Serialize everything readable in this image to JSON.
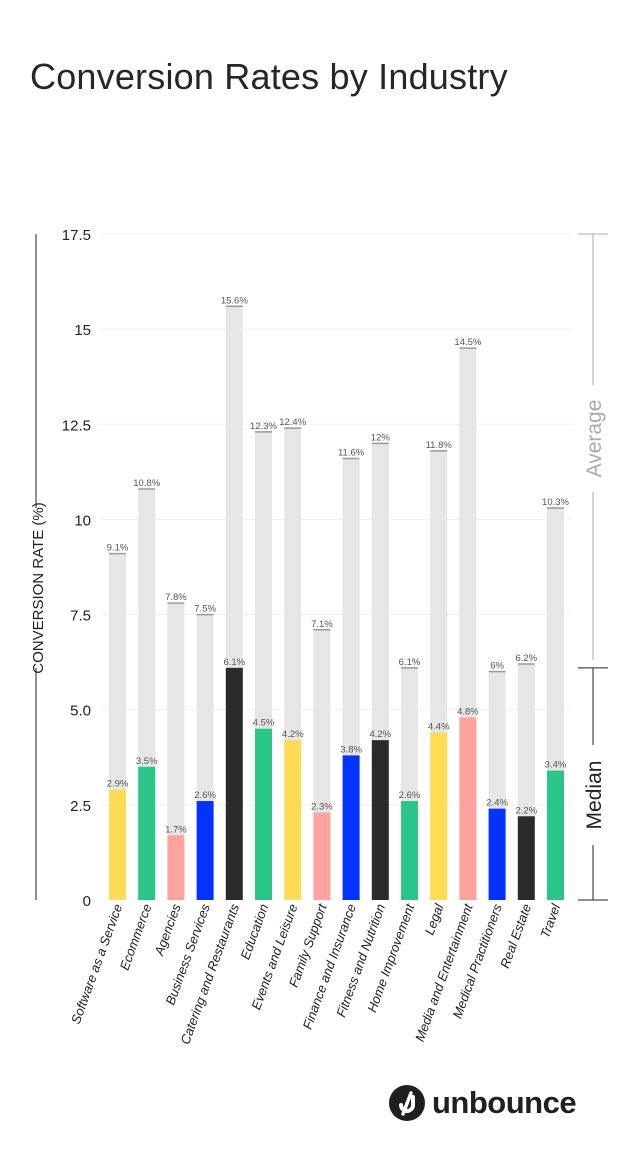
{
  "page": {
    "title": "Conversion Rates by Industry"
  },
  "brand": {
    "name": "unbounce"
  },
  "colors": {
    "yellow": "#fedc55",
    "green": "#2ac688",
    "pink": "#fea39f",
    "blue": "#0433ff",
    "black": "#2b2b2b",
    "average_bar": "#e6e6e6",
    "axis": "#222222",
    "bracket": "#aaaaaa"
  },
  "chart_data": {
    "type": "bar",
    "title": "Conversion Rates by Industry",
    "xlabel": "",
    "ylabel": "CONVERSION RATE (%)",
    "ylim": [
      0,
      17.5
    ],
    "yticks": [
      "0",
      "2.5",
      "5.0",
      "7.5",
      "10",
      "12.5",
      "15",
      "17.5"
    ],
    "grid": true,
    "categories": [
      "Software as a Service",
      "Ecommerce",
      "Agencies",
      "Business Services",
      "Catering and Restaurants",
      "Education",
      "Events and Leisure",
      "Family Support",
      "Finance and Insurance",
      "Fitness and Nutrition",
      "Home Improvement",
      "Legal",
      "Media and Entertainment",
      "Medical Practitioners",
      "Real Estate",
      "Travel"
    ],
    "series": [
      {
        "name": "Median",
        "values": [
          2.9,
          3.5,
          1.7,
          2.6,
          6.1,
          4.5,
          4.2,
          2.3,
          3.8,
          4.2,
          2.6,
          4.4,
          4.8,
          2.4,
          2.2,
          3.4
        ],
        "labels": [
          "2.9%",
          "3.5%",
          "1.7%",
          "2.6%",
          "6.1%",
          "4.5%",
          "4.2%",
          "2.3%",
          "3.8%",
          "4.2%",
          "2.6%",
          "4.4%",
          "4.8%",
          "2.4%",
          "2.2%",
          "3.4%"
        ],
        "colors": [
          "yellow",
          "green",
          "pink",
          "blue",
          "black",
          "green",
          "yellow",
          "pink",
          "blue",
          "black",
          "green",
          "yellow",
          "pink",
          "blue",
          "black",
          "green"
        ]
      },
      {
        "name": "Average",
        "values": [
          9.1,
          10.8,
          7.8,
          7.5,
          15.6,
          12.3,
          12.4,
          7.1,
          11.6,
          12,
          6.1,
          11.8,
          14.5,
          6,
          6.2,
          10.3
        ],
        "labels": [
          "9.1%",
          "10.8%",
          "7.8%",
          "7.5%",
          "15.6%",
          "12.3%",
          "12.4%",
          "7.1%",
          "11.6%",
          "12%",
          "6.1%",
          "11.8%",
          "14.5%",
          "6%",
          "6.2%",
          "10.3%"
        ]
      }
    ]
  }
}
